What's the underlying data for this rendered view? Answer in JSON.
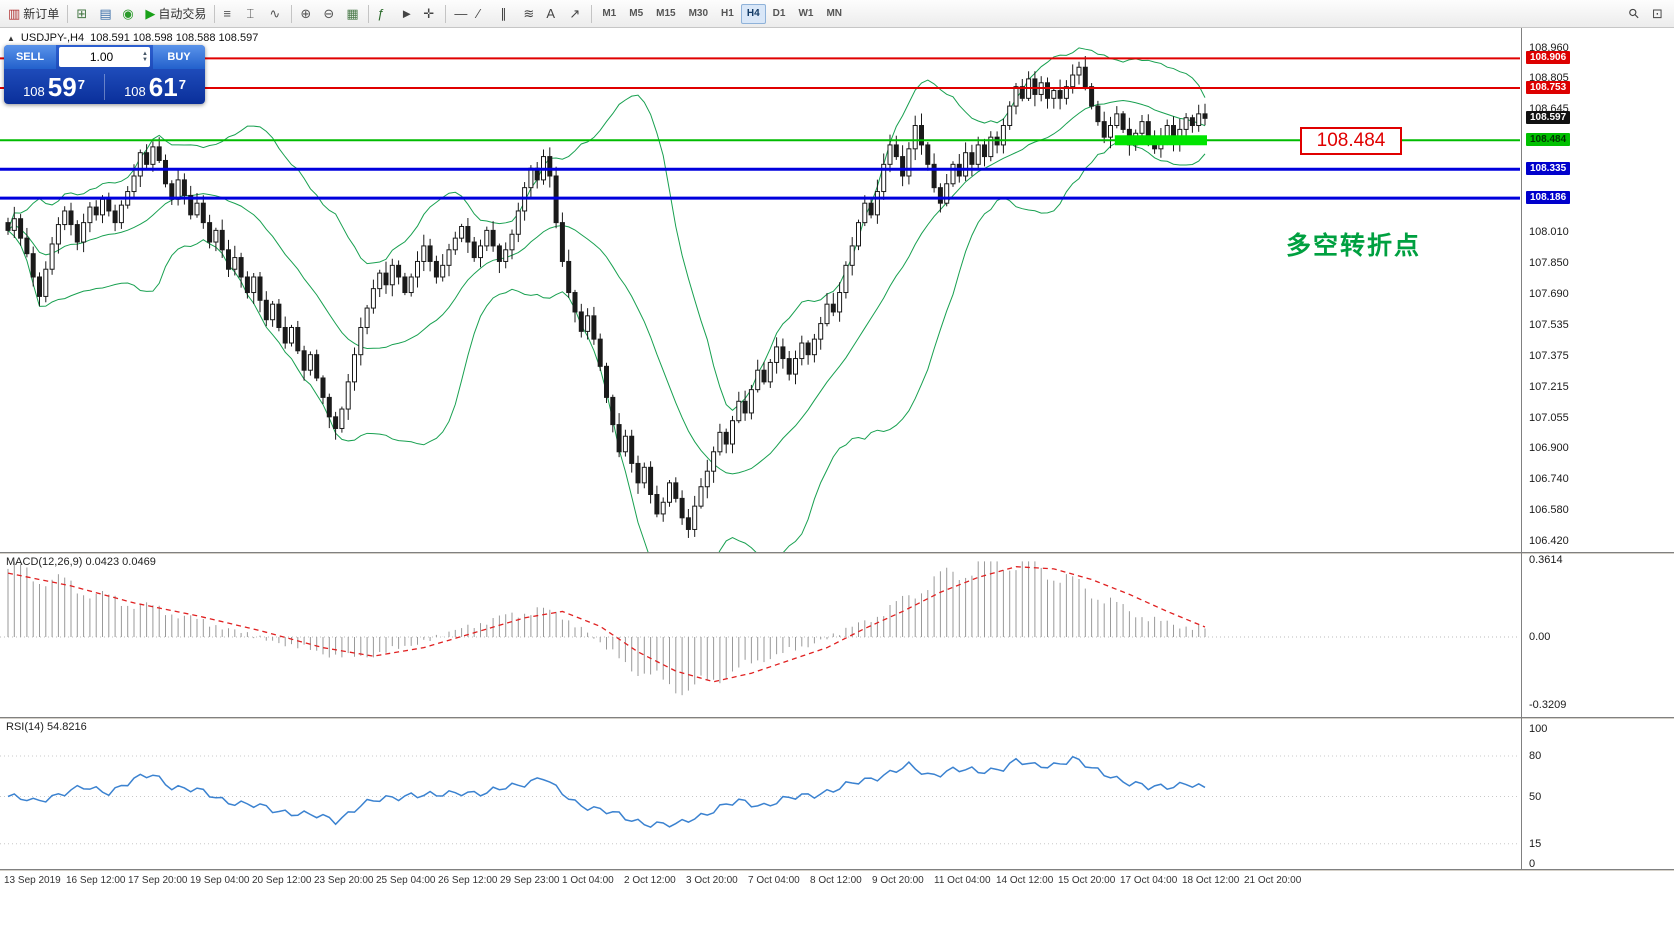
{
  "toolbar": {
    "buttons": [
      {
        "name": "new-order-button",
        "glyph": "▥",
        "glyph_color": "#b03030",
        "label": "新订单"
      },
      {
        "sep": true
      },
      {
        "name": "chart-window-button",
        "glyph": "⊞",
        "glyph_color": "#447744"
      },
      {
        "name": "profiles-button",
        "glyph": "▤",
        "glyph_color": "#3a6ea8"
      },
      {
        "name": "market-watch-button",
        "glyph": "◉",
        "glyph_color": "#2a9a2a"
      },
      {
        "name": "auto-trading-button",
        "glyph": "▶",
        "glyph_color": "#18a018",
        "label": "自动交易"
      },
      {
        "sep": true
      },
      {
        "name": "bar-chart-button",
        "glyph": "≡",
        "glyph_color": "#555555"
      },
      {
        "name": "candlestick-chart-button",
        "glyph": "⌶",
        "glyph_color": "#555555"
      },
      {
        "name": "line-chart-button",
        "glyph": "∿",
        "glyph_color": "#555555"
      },
      {
        "sep": true
      },
      {
        "name": "zoom-in-button",
        "glyph": "⊕",
        "glyph_color": "#555555"
      },
      {
        "name": "zoom-out-button",
        "glyph": "⊖",
        "glyph_color": "#555555"
      },
      {
        "name": "grid-button",
        "glyph": "▦",
        "glyph_color": "#4a7a4a"
      },
      {
        "sep": true
      },
      {
        "name": "indicators-button",
        "glyph": "ƒ",
        "glyph_color": "#2a6a2a"
      },
      {
        "name": "cursor-button",
        "glyph": "►",
        "glyph_color": "#444444"
      },
      {
        "name": "crosshair-button",
        "glyph": "✛",
        "glyph_color": "#444444"
      },
      {
        "sep": true
      },
      {
        "name": "hline-tool-button",
        "glyph": "—",
        "glyph_color": "#444444"
      },
      {
        "name": "trendline-tool-button",
        "glyph": "⁄",
        "glyph_color": "#444444"
      },
      {
        "name": "channel-tool-button",
        "glyph": "∥",
        "glyph_color": "#444444"
      },
      {
        "name": "fibonacci-tool-button",
        "glyph": "≋",
        "glyph_color": "#444444"
      },
      {
        "name": "text-tool-button",
        "glyph": "A",
        "glyph_color": "#444444"
      },
      {
        "name": "arrows-tool-button",
        "glyph": "↗",
        "glyph_color": "#444444"
      },
      {
        "sep": true
      }
    ],
    "timeframes": [
      "M1",
      "M5",
      "M15",
      "M30",
      "H1",
      "H4",
      "D1",
      "W1",
      "MN"
    ],
    "active_timeframe": "H4",
    "right_buttons": [
      {
        "name": "search-button",
        "glyph": "⚲",
        "rotate": true
      },
      {
        "name": "window-list-button",
        "glyph": "⊡"
      }
    ]
  },
  "chart_header": {
    "marker": "▲",
    "symbol": "USDJPY-,H4",
    "ohlc": "108.591 108.598 108.588 108.597"
  },
  "trade_panel": {
    "sell_label": "SELL",
    "buy_label": "BUY",
    "volume": "1.00",
    "sell_price_prefix": "108",
    "sell_price_main": "59",
    "sell_price_pip": "7",
    "buy_price_prefix": "108",
    "buy_price_main": "61",
    "buy_price_pip": "7"
  },
  "annotations": {
    "price_callout": "108.484",
    "turning_point_text": "多空转折点"
  },
  "chart_data": {
    "main": {
      "type": "candlestick",
      "symbol": "USDJPY",
      "timeframe": "H4",
      "current_price": 108.597,
      "ylim": [
        106.4,
        108.99
      ],
      "y_ticks": [
        "108.960",
        "108.805",
        "108.645",
        "108.010",
        "107.850",
        "107.690",
        "107.535",
        "107.375",
        "107.215",
        "107.055",
        "106.900",
        "106.740",
        "106.580",
        "106.420"
      ],
      "price_badges": [
        {
          "value": "108.906",
          "price": 108.906,
          "bg": "#dd0000",
          "fg": "#ffffff"
        },
        {
          "value": "108.753",
          "price": 108.753,
          "bg": "#dd0000",
          "fg": "#ffffff"
        },
        {
          "value": "108.597",
          "price": 108.597,
          "bg": "#111111",
          "fg": "#ffffff"
        },
        {
          "value": "108.484",
          "price": 108.484,
          "bg": "#00c000",
          "fg": "#003300"
        },
        {
          "value": "108.335",
          "price": 108.335,
          "bg": "#0000cc",
          "fg": "#ffffff"
        },
        {
          "value": "108.186",
          "price": 108.186,
          "bg": "#0000cc",
          "fg": "#ffffff"
        }
      ],
      "hlines": [
        {
          "price": 108.906,
          "color": "#e00000",
          "width": 2
        },
        {
          "price": 108.753,
          "color": "#e00000",
          "width": 2
        },
        {
          "price": 108.484,
          "color": "#00bb00",
          "width": 2
        },
        {
          "price": 108.335,
          "color": "#0000dd",
          "width": 3
        },
        {
          "price": 108.186,
          "color": "#0000dd",
          "width": 3
        }
      ],
      "highlight_zone": {
        "price": 108.484,
        "from_candle": 176,
        "to_candle": 190,
        "color": "#00e400"
      },
      "bollinger": {
        "period": 20,
        "deviations": 2,
        "color": "#18a050"
      },
      "closes": [
        108.02,
        108.08,
        107.98,
        107.9,
        107.78,
        107.68,
        107.82,
        107.95,
        108.05,
        108.12,
        108.05,
        107.96,
        108.06,
        108.14,
        108.1,
        108.18,
        108.12,
        108.06,
        108.15,
        108.22,
        108.3,
        108.42,
        108.36,
        108.45,
        108.38,
        108.26,
        108.18,
        108.28,
        108.2,
        108.1,
        108.16,
        108.06,
        107.96,
        108.02,
        107.92,
        107.82,
        107.88,
        107.78,
        107.7,
        107.78,
        107.66,
        107.56,
        107.64,
        107.52,
        107.44,
        107.52,
        107.4,
        107.3,
        107.38,
        107.26,
        107.16,
        107.06,
        107.0,
        107.1,
        107.24,
        107.38,
        107.52,
        107.62,
        107.72,
        107.8,
        107.74,
        107.84,
        107.78,
        107.7,
        107.78,
        107.86,
        107.94,
        107.86,
        107.78,
        107.84,
        107.92,
        107.98,
        108.04,
        107.96,
        107.88,
        107.94,
        108.02,
        107.94,
        107.86,
        107.92,
        108.0,
        108.12,
        108.24,
        108.34,
        108.28,
        108.4,
        108.3,
        108.06,
        107.86,
        107.7,
        107.6,
        107.5,
        107.58,
        107.46,
        107.32,
        107.16,
        107.02,
        106.88,
        106.96,
        106.82,
        106.72,
        106.8,
        106.66,
        106.56,
        106.62,
        106.72,
        106.64,
        106.54,
        106.48,
        106.6,
        106.7,
        106.78,
        106.88,
        106.98,
        106.92,
        107.04,
        107.14,
        107.08,
        107.2,
        107.3,
        107.24,
        107.34,
        107.42,
        107.36,
        107.28,
        107.36,
        107.44,
        107.38,
        107.46,
        107.54,
        107.64,
        107.6,
        107.7,
        107.84,
        107.94,
        108.06,
        108.16,
        108.1,
        108.22,
        108.36,
        108.46,
        108.4,
        108.3,
        108.44,
        108.56,
        108.46,
        108.36,
        108.24,
        108.16,
        108.26,
        108.36,
        108.3,
        108.42,
        108.36,
        108.46,
        108.4,
        108.5,
        108.46,
        108.56,
        108.66,
        108.76,
        108.7,
        108.8,
        108.72,
        108.78,
        108.7,
        108.74,
        108.7,
        108.76,
        108.82,
        108.86,
        108.76,
        108.66,
        108.58,
        108.5,
        108.56,
        108.62,
        108.54,
        108.46,
        108.52,
        108.58,
        108.5,
        108.44,
        108.5,
        108.56,
        108.48,
        108.54,
        108.6,
        108.56,
        108.62,
        108.597
      ]
    },
    "macd": {
      "type": "bar+line",
      "label": "MACD(12,26,9) 0.0423 0.0469",
      "ylim": [
        -0.3209,
        0.3614
      ],
      "y_ticks": [
        "0.3614",
        "0.00",
        "-0.3209"
      ],
      "hist_anchors": [
        [
          0,
          0.32
        ],
        [
          8,
          0.26
        ],
        [
          16,
          0.18
        ],
        [
          24,
          0.13
        ],
        [
          30,
          0.08
        ],
        [
          36,
          0.03
        ],
        [
          42,
          -0.02
        ],
        [
          48,
          -0.06
        ],
        [
          54,
          -0.1
        ],
        [
          60,
          -0.07
        ],
        [
          66,
          -0.02
        ],
        [
          72,
          0.04
        ],
        [
          78,
          0.09
        ],
        [
          84,
          0.13
        ],
        [
          88,
          0.1
        ],
        [
          92,
          0.02
        ],
        [
          96,
          -0.08
        ],
        [
          100,
          -0.16
        ],
        [
          104,
          -0.21
        ],
        [
          108,
          -0.25
        ],
        [
          112,
          -0.2
        ],
        [
          116,
          -0.15
        ],
        [
          120,
          -0.1
        ],
        [
          126,
          -0.05
        ],
        [
          132,
          0.02
        ],
        [
          138,
          0.1
        ],
        [
          142,
          0.17
        ],
        [
          146,
          0.25
        ],
        [
          150,
          0.3
        ],
        [
          154,
          0.33
        ],
        [
          158,
          0.36
        ],
        [
          162,
          0.34
        ],
        [
          166,
          0.3
        ],
        [
          170,
          0.24
        ],
        [
          174,
          0.18
        ],
        [
          178,
          0.12
        ],
        [
          182,
          0.08
        ],
        [
          186,
          0.05
        ],
        [
          190,
          0.042
        ]
      ],
      "signal_anchors": [
        [
          0,
          0.3
        ],
        [
          10,
          0.24
        ],
        [
          20,
          0.16
        ],
        [
          30,
          0.1
        ],
        [
          40,
          0.03
        ],
        [
          50,
          -0.05
        ],
        [
          58,
          -0.09
        ],
        [
          66,
          -0.05
        ],
        [
          74,
          0.02
        ],
        [
          82,
          0.09
        ],
        [
          88,
          0.12
        ],
        [
          94,
          0.05
        ],
        [
          100,
          -0.07
        ],
        [
          106,
          -0.16
        ],
        [
          112,
          -0.21
        ],
        [
          118,
          -0.17
        ],
        [
          124,
          -0.11
        ],
        [
          130,
          -0.05
        ],
        [
          136,
          0.04
        ],
        [
          142,
          0.12
        ],
        [
          148,
          0.21
        ],
        [
          154,
          0.28
        ],
        [
          160,
          0.33
        ],
        [
          166,
          0.32
        ],
        [
          172,
          0.27
        ],
        [
          178,
          0.2
        ],
        [
          184,
          0.12
        ],
        [
          190,
          0.047
        ]
      ]
    },
    "rsi": {
      "type": "line",
      "label": "RSI(14) 54.8216",
      "ylim": [
        0,
        100
      ],
      "y_ticks": [
        "100",
        "80",
        "50",
        "15",
        "0"
      ],
      "levels": [
        80,
        50,
        15
      ],
      "anchors": [
        [
          0,
          50
        ],
        [
          4,
          46
        ],
        [
          8,
          52
        ],
        [
          12,
          56
        ],
        [
          16,
          54
        ],
        [
          20,
          62
        ],
        [
          23,
          66
        ],
        [
          26,
          58
        ],
        [
          30,
          54
        ],
        [
          34,
          48
        ],
        [
          38,
          44
        ],
        [
          42,
          40
        ],
        [
          46,
          38
        ],
        [
          50,
          34
        ],
        [
          52,
          32
        ],
        [
          56,
          44
        ],
        [
          60,
          48
        ],
        [
          64,
          52
        ],
        [
          68,
          50
        ],
        [
          72,
          54
        ],
        [
          76,
          52
        ],
        [
          80,
          58
        ],
        [
          85,
          64
        ],
        [
          87,
          55
        ],
        [
          90,
          46
        ],
        [
          94,
          40
        ],
        [
          98,
          34
        ],
        [
          102,
          30
        ],
        [
          106,
          28
        ],
        [
          108,
          33
        ],
        [
          112,
          40
        ],
        [
          116,
          46
        ],
        [
          120,
          44
        ],
        [
          124,
          48
        ],
        [
          128,
          52
        ],
        [
          132,
          56
        ],
        [
          136,
          62
        ],
        [
          140,
          68
        ],
        [
          143,
          72
        ],
        [
          146,
          66
        ],
        [
          150,
          70
        ],
        [
          154,
          68
        ],
        [
          158,
          72
        ],
        [
          160,
          76
        ],
        [
          163,
          72
        ],
        [
          166,
          74
        ],
        [
          169,
          78
        ],
        [
          172,
          70
        ],
        [
          175,
          66
        ],
        [
          178,
          60
        ],
        [
          181,
          56
        ],
        [
          184,
          58
        ],
        [
          187,
          60
        ],
        [
          190,
          54.8
        ]
      ]
    },
    "time_axis": [
      "13 Sep 2019",
      "16 Sep 12:00",
      "17 Sep 20:00",
      "19 Sep 04:00",
      "20 Sep 12:00",
      "23 Sep 20:00",
      "25 Sep 04:00",
      "26 Sep 12:00",
      "29 Sep 23:00",
      "1 Oct 04:00",
      "2 Oct 12:00",
      "3 Oct 20:00",
      "7 Oct 04:00",
      "8 Oct 12:00",
      "9 Oct 20:00",
      "11 Oct 04:00",
      "14 Oct 12:00",
      "15 Oct 20:00",
      "17 Oct 04:00",
      "18 Oct 12:00",
      "21 Oct 20:00"
    ]
  }
}
